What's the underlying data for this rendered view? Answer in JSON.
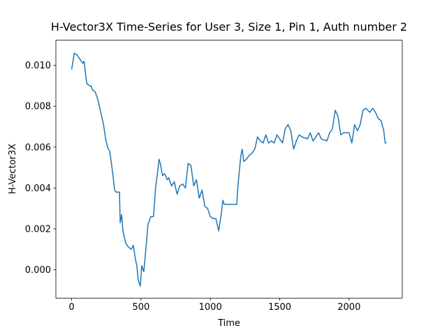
{
  "chart_data": {
    "type": "line",
    "title": "H-Vector3X Time-Series for User 3, Size 1, Pin 1, Auth number 2",
    "xlabel": "Time",
    "ylabel": "H-Vector3X",
    "color": "#1f77b4",
    "x": [
      0,
      10,
      20,
      40,
      60,
      80,
      90,
      100,
      110,
      130,
      140,
      150,
      170,
      190,
      210,
      230,
      245,
      255,
      265,
      275,
      285,
      300,
      310,
      320,
      345,
      350,
      360,
      370,
      390,
      410,
      430,
      445,
      460,
      470,
      480,
      495,
      505,
      520,
      535,
      550,
      570,
      590,
      605,
      620,
      630,
      640,
      655,
      670,
      690,
      700,
      720,
      740,
      760,
      780,
      800,
      820,
      840,
      860,
      880,
      900,
      920,
      940,
      960,
      980,
      1000,
      1020,
      1040,
      1060,
      1080,
      1090,
      1100,
      1150,
      1190,
      1200,
      1210,
      1220,
      1230,
      1240,
      1260,
      1280,
      1300,
      1320,
      1340,
      1360,
      1380,
      1400,
      1420,
      1440,
      1460,
      1480,
      1500,
      1520,
      1540,
      1560,
      1580,
      1600,
      1620,
      1640,
      1660,
      1700,
      1720,
      1740,
      1760,
      1780,
      1800,
      1840,
      1860,
      1880,
      1900,
      1920,
      1940,
      1960,
      2000,
      2020,
      2040,
      2060,
      2080,
      2100,
      2120,
      2150,
      2170,
      2190,
      2210,
      2230,
      2250,
      2260,
      2270
    ],
    "values": [
      0.0098,
      0.0102,
      0.0106,
      0.0105,
      0.0103,
      0.0101,
      0.0102,
      0.0096,
      0.0091,
      0.009,
      0.009,
      0.0088,
      0.0087,
      0.0083,
      0.0077,
      0.0071,
      0.0064,
      0.0061,
      0.0059,
      0.0058,
      0.0053,
      0.0045,
      0.0039,
      0.0038,
      0.0038,
      0.0023,
      0.0027,
      0.0019,
      0.0013,
      0.0011,
      0.001,
      0.0012,
      0.0005,
      0.0002,
      -0.0005,
      -0.0008,
      0.0002,
      -0.0001,
      0.001,
      0.0022,
      0.0026,
      0.0026,
      0.004,
      0.0048,
      0.0054,
      0.0052,
      0.0046,
      0.0047,
      0.0044,
      0.0045,
      0.0041,
      0.0043,
      0.0037,
      0.0041,
      0.0042,
      0.004,
      0.0052,
      0.0051,
      0.0041,
      0.0044,
      0.0035,
      0.0039,
      0.0031,
      0.003,
      0.0026,
      0.0025,
      0.0025,
      0.0019,
      0.0028,
      0.0034,
      0.0032,
      0.0032,
      0.0032,
      0.0042,
      0.0049,
      0.0056,
      0.0059,
      0.0053,
      0.0054,
      0.0056,
      0.0057,
      0.0059,
      0.0065,
      0.0063,
      0.0062,
      0.0066,
      0.0062,
      0.0063,
      0.0062,
      0.0066,
      0.0064,
      0.0062,
      0.0069,
      0.0071,
      0.0068,
      0.0059,
      0.0063,
      0.0066,
      0.0065,
      0.0064,
      0.0067,
      0.0063,
      0.0065,
      0.0067,
      0.0064,
      0.0063,
      0.0067,
      0.0069,
      0.0078,
      0.0075,
      0.0066,
      0.0067,
      0.0067,
      0.0062,
      0.0071,
      0.0068,
      0.0071,
      0.0078,
      0.0079,
      0.0077,
      0.0079,
      0.0077,
      0.0074,
      0.0073,
      0.0068,
      0.0062,
      0.0062
    ],
    "xlim": [
      -113.5,
      2383.5
    ],
    "ylim": [
      -0.00139,
      0.01123
    ],
    "xticks": [
      0,
      500,
      1000,
      1500,
      2000
    ],
    "yticks": [
      {
        "value": 0,
        "label": "0.000"
      },
      0.002,
      0.004,
      0.006,
      0.008,
      {
        "value": 0.01,
        "label": "0.010"
      }
    ]
  }
}
